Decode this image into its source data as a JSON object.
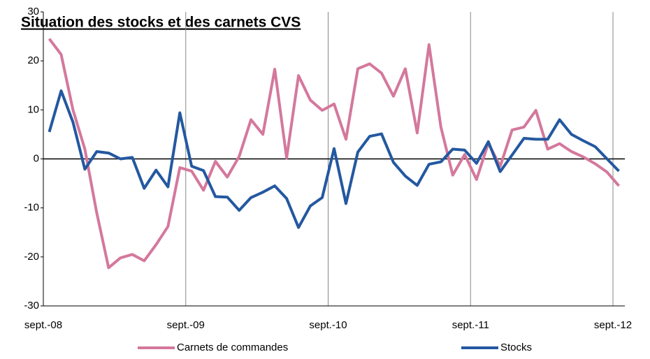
{
  "chart_data": {
    "type": "line",
    "title": "Situation des stocks et des carnets CVS",
    "categories": [
      "sept.-08",
      null,
      null,
      null,
      null,
      null,
      null,
      null,
      null,
      null,
      null,
      null,
      "sept.-09",
      null,
      null,
      null,
      null,
      null,
      null,
      null,
      null,
      null,
      null,
      null,
      "sept.-10",
      null,
      null,
      null,
      null,
      null,
      null,
      null,
      null,
      null,
      null,
      null,
      "sept.-11",
      null,
      null,
      null,
      null,
      null,
      null,
      null,
      null,
      null,
      null,
      null,
      "sept.-12"
    ],
    "series": [
      {
        "name": "Carnets de commandes",
        "color": "#d4789c",
        "values": [
          24.5,
          21.3,
          10,
          2,
          -11,
          -22.2,
          -20.2,
          -19.5,
          -20.8,
          -17.5,
          -13.8,
          -1.8,
          -2.5,
          -6.4,
          -0.5,
          -3.7,
          0.5,
          8,
          5,
          18.3,
          0.2,
          17,
          12,
          9.9,
          11.2,
          4,
          18.4,
          19.4,
          17.5,
          12.8,
          18.4,
          5.3,
          23.3,
          6.5,
          -3.3,
          0.9,
          -4.2,
          3.2,
          -1.5,
          5.9,
          6.5,
          9.9,
          2,
          3.1,
          1.5,
          0.4,
          -1,
          -2.7,
          -5.5
        ]
      },
      {
        "name": "Stocks",
        "color": "#2458a0",
        "values": [
          5.5,
          13.9,
          7.5,
          -2.1,
          1.5,
          1.2,
          0,
          0.3,
          -6,
          -2.3,
          -5.7,
          9.4,
          -1.5,
          -2.4,
          -7.7,
          -7.8,
          -10.5,
          -7.9,
          -6.8,
          -5.5,
          -8.1,
          -14,
          -9.6,
          -7.9,
          2.1,
          -9.1,
          1.4,
          4.6,
          5.1,
          -0.7,
          -3.5,
          -5.4,
          -1.1,
          -0.6,
          2,
          1.8,
          -0.9,
          3.5,
          -2.6,
          0.8,
          4.2,
          4,
          4,
          8,
          5,
          3.7,
          2.5,
          0,
          -2.5
        ]
      }
    ],
    "ylim": [
      -30,
      30
    ],
    "yticks": [
      -30,
      -20,
      -10,
      0,
      10,
      20,
      30
    ],
    "grid": true
  }
}
